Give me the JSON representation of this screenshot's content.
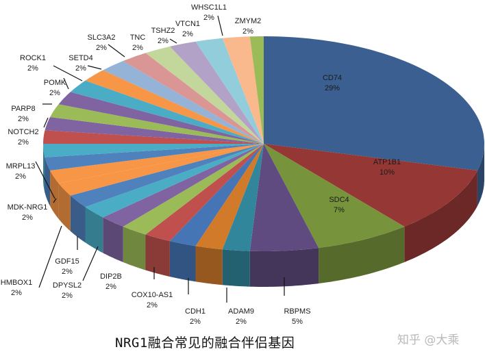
{
  "chart_data": {
    "type": "pie",
    "style": "3d-exploded-none",
    "title": "NRG1融合常见的融合伴侣基因",
    "legend": "none (data labels with leader lines)",
    "slices": [
      {
        "label": "CD74",
        "value": 29,
        "pct": "29%",
        "color": "#3b5f91"
      },
      {
        "label": "ATP1B1",
        "value": 10,
        "pct": "10%",
        "color": "#953735"
      },
      {
        "label": "SDC4",
        "value": 7,
        "pct": "7%",
        "color": "#77933c"
      },
      {
        "label": "RBPMS",
        "value": 5,
        "pct": "5%",
        "color": "#5f4b7f"
      },
      {
        "label": "ADAM9",
        "value": 2,
        "pct": "2%",
        "color": "#31869b"
      },
      {
        "label": "CDH1",
        "value": 2,
        "pct": "2%",
        "color": "#d07a2a"
      },
      {
        "label": "COX10-AS1",
        "value": 2,
        "pct": "2%",
        "color": "#4575b4"
      },
      {
        "label": "DIP2B",
        "value": 2,
        "pct": "2%",
        "color": "#c0504d"
      },
      {
        "label": "DPYSL2",
        "value": 2,
        "pct": "2%",
        "color": "#9bbb59"
      },
      {
        "label": "GDF15",
        "value": 2,
        "pct": "2%",
        "color": "#8064a2"
      },
      {
        "label": "HMBOX1",
        "value": 2,
        "pct": "2%",
        "color": "#4bacc6"
      },
      {
        "label": "MDK-NRG1",
        "value": 2,
        "pct": "2%",
        "color": "#f79646"
      },
      {
        "label": "MRPL13",
        "value": 2,
        "pct": "2%",
        "color": "#4f81bd"
      },
      {
        "label": "NOTCH2",
        "value": 2,
        "pct": "2%",
        "color": "#c0504d"
      },
      {
        "label": "PARP8",
        "value": 2,
        "pct": "2%",
        "color": "#9bbb59"
      },
      {
        "label": "POMK",
        "value": 2,
        "pct": "2%",
        "color": "#8064a2"
      },
      {
        "label": "ROCK1",
        "value": 2,
        "pct": "2%",
        "color": "#4bacc6"
      },
      {
        "label": "SETD4",
        "value": 2,
        "pct": "2%",
        "color": "#f79646"
      },
      {
        "label": "SLC3A2",
        "value": 2,
        "pct": "2%",
        "color": "#95b3d7"
      },
      {
        "label": "TNC",
        "value": 2,
        "pct": "2%",
        "color": "#d99694"
      },
      {
        "label": "TSHZ2",
        "value": 2,
        "pct": "2%",
        "color": "#c3d69b"
      },
      {
        "label": "VTCN1",
        "value": 2,
        "pct": "2%",
        "color": "#b2a2c7"
      },
      {
        "label": "WHSC1L1",
        "value": 2,
        "pct": "2%",
        "color": "#92cddc"
      },
      {
        "label": "ZMYM2",
        "value": 2,
        "pct": "2%",
        "color": "#fab98c"
      }
    ],
    "unlabeled_small_slices": [
      {
        "value": 2,
        "color": "#4f81bd"
      },
      {
        "value": 2,
        "color": "#f79646"
      },
      {
        "value": 2,
        "color": "#4bacc6"
      },
      {
        "value": 2,
        "color": "#8064a2"
      },
      {
        "value": 1,
        "color": "#9bbb59"
      }
    ]
  },
  "caption": {
    "title": "NRG1融合常见的融合伴侣基因",
    "watermark": "知乎 @大乘"
  }
}
